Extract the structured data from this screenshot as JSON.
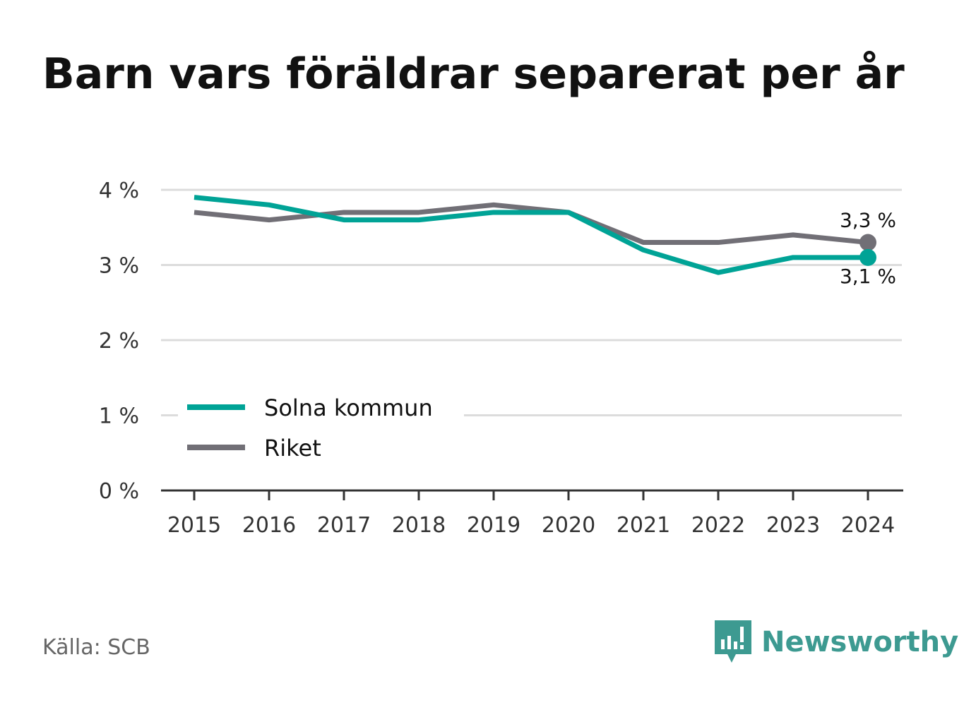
{
  "title": "Barn vars föräldrar separerat per år",
  "source": "Källa: SCB",
  "brand": {
    "name": "Newsworthy",
    "icon": "newsworthy-logo-icon",
    "color": "#3d9a91"
  },
  "chart_data": {
    "type": "line",
    "title": "Barn vars föräldrar separerat per år",
    "categories": [
      "2015",
      "2016",
      "2017",
      "2018",
      "2019",
      "2020",
      "2021",
      "2022",
      "2023",
      "2024"
    ],
    "ylim": [
      0,
      4
    ],
    "yticks": [
      0,
      1,
      2,
      3,
      4
    ],
    "ytick_labels": [
      "0 %",
      "1 %",
      "2 %",
      "3 %",
      "4 %"
    ],
    "grid": true,
    "legend_position": "bottom-left",
    "series": [
      {
        "name": "Solna kommun",
        "color": "#00a396",
        "values": [
          3.9,
          3.8,
          3.6,
          3.6,
          3.7,
          3.7,
          3.2,
          2.9,
          3.1,
          3.1
        ],
        "end_label": "3,1 %"
      },
      {
        "name": "Riket",
        "color": "#716f76",
        "values": [
          3.7,
          3.6,
          3.7,
          3.7,
          3.8,
          3.7,
          3.3,
          3.3,
          3.4,
          3.3
        ],
        "end_label": "3,3 %"
      }
    ]
  }
}
